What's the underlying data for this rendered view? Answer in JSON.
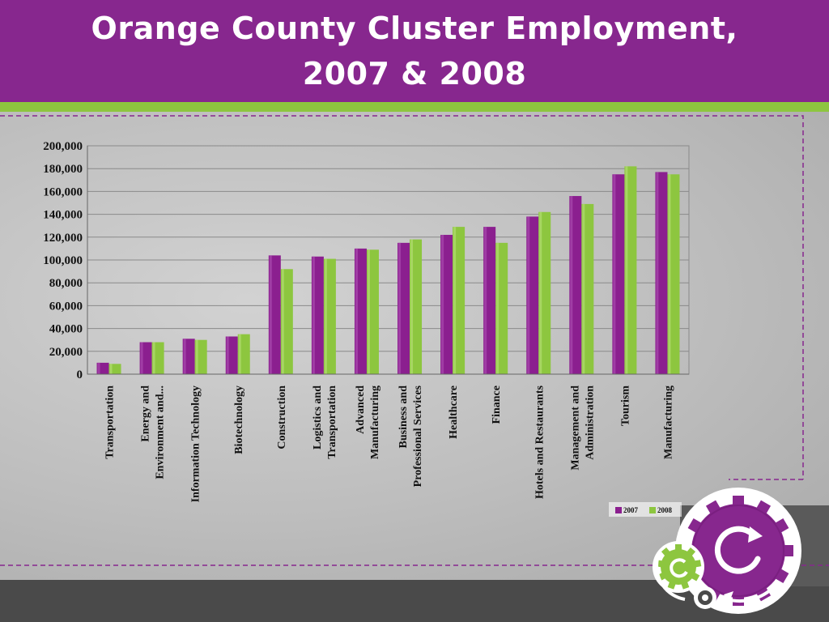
{
  "slide": {
    "title_line1": "Orange County Cluster Employment,",
    "title_line2": "2007 & 2008"
  },
  "colors": {
    "title_bar": "#87278e",
    "accent_green": "#8dc63f",
    "series_2007": "#8b1f8f",
    "series_2008": "#8dc63f"
  },
  "icons": [
    "gear-icon",
    "refresh-icon"
  ],
  "chart_data": {
    "type": "bar",
    "title": "Orange County Cluster Employment, 2007 & 2008",
    "xlabel": "",
    "ylabel": "",
    "ylim": [
      0,
      200000
    ],
    "y_ticks": [
      "0",
      "20,000",
      "40,000",
      "60,000",
      "80,000",
      "100,000",
      "120,000",
      "140,000",
      "160,000",
      "180,000",
      "200,000"
    ],
    "grid": true,
    "legend_position": "bottom-right",
    "categories": [
      [
        "Transportation"
      ],
      [
        "Energy and",
        "Environment and..."
      ],
      [
        "Information Technology"
      ],
      [
        "Biotechnology"
      ],
      [
        "Construction"
      ],
      [
        "Logistics and",
        "Transportation"
      ],
      [
        "Advanced",
        "Manufacturing"
      ],
      [
        "Business and",
        "Professional Services"
      ],
      [
        "Healthcare"
      ],
      [
        "Finance"
      ],
      [
        "Hotels and Restaurants"
      ],
      [
        "Management and",
        "Administration"
      ],
      [
        "Tourism"
      ],
      [
        "Manufacturing"
      ]
    ],
    "series": [
      {
        "name": "2007",
        "values": [
          10000,
          28000,
          31000,
          33000,
          104000,
          103000,
          110000,
          115000,
          122000,
          129000,
          138000,
          156000,
          175000,
          177000
        ]
      },
      {
        "name": "2008",
        "values": [
          9000,
          28000,
          30000,
          35000,
          92000,
          101000,
          109000,
          118000,
          129000,
          115000,
          142000,
          149000,
          182000,
          175000
        ]
      }
    ]
  }
}
